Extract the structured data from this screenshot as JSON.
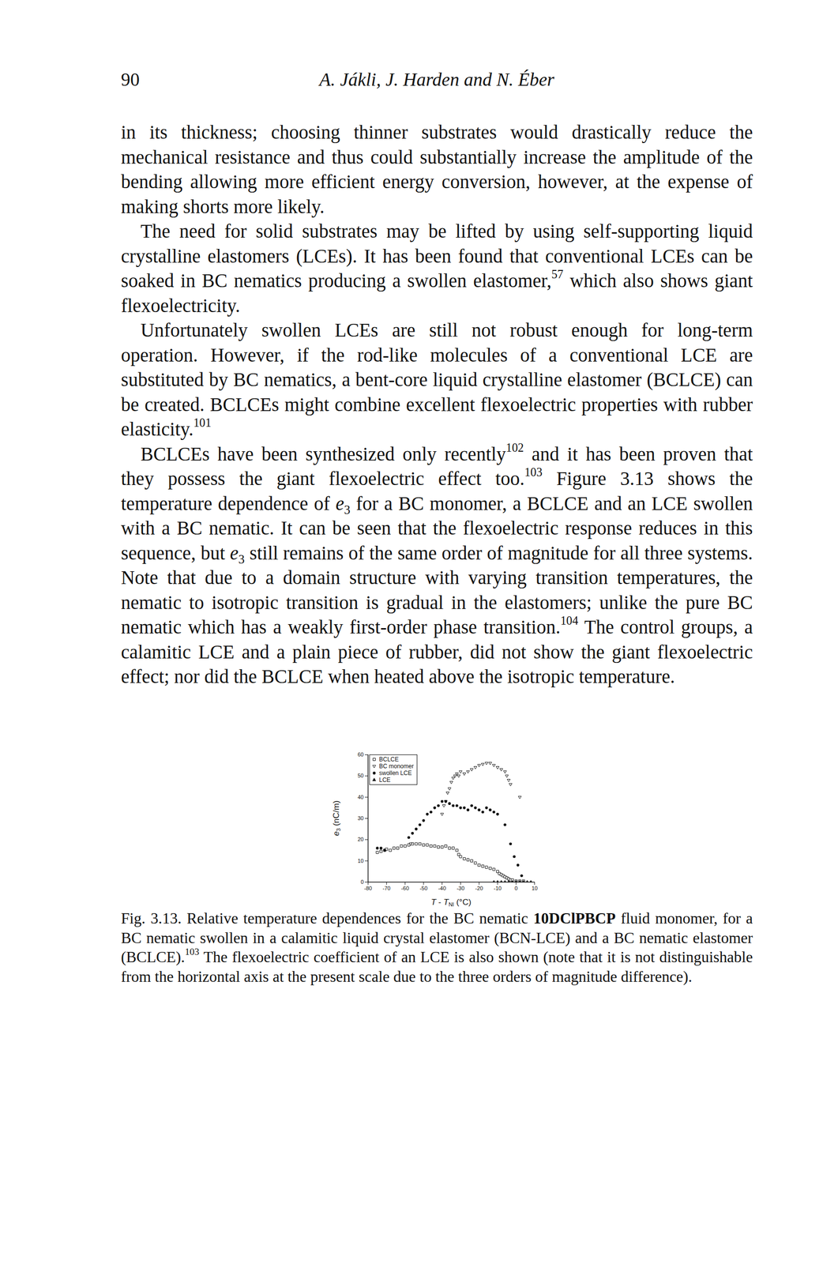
{
  "header": {
    "page_number": "90",
    "running_head": "A. Jákli, J. Harden and N. Éber"
  },
  "paragraphs": [
    [
      "in its thickness; choosing thinner substrates would drastically reduce the mechanical resistance and thus could substantially increase the amplitude of the bending allowing more efficient energy conversion, however, at the expense of making shorts more likely."
    ],
    [
      "The need for solid substrates may be lifted by using self-supporting liquid crystalline elastomers (LCEs). It has been found that conventional LCEs can be soaked in BC nematics producing a swollen elastomer,",
      {
        "sup": "57"
      },
      " which also shows giant flexoelectricity."
    ],
    [
      "Unfortunately swollen LCEs are still not robust enough for long-term operation. However, if the rod-like molecules of a conventional LCE are substituted by BC nematics, a bent-core liquid crystalline elastomer (BCLCE) can be created. BCLCEs might combine excellent flexoelectric properties with rubber elasticity.",
      {
        "sup": "101"
      }
    ],
    [
      "BCLCEs have been synthesized only recently",
      {
        "sup": "102"
      },
      " and it has been proven that they possess the giant flexoelectric effect too.",
      {
        "sup": "103"
      },
      " Figure 3.13 shows the temperature dependence of ",
      {
        "i": "e"
      },
      {
        "sub": "3"
      },
      " for a BC monomer, a BCLCE and an LCE swollen with a BC nematic. It can be seen that the flexoelectric response reduces in this sequence, but ",
      {
        "i": "e"
      },
      {
        "sub": "3"
      },
      " still remains of the same order of magnitude for all three systems. Note that due to a domain structure with varying transition temperatures, the nematic to isotropic transition is gradual in the elastomers; unlike the pure BC nematic which has a weakly first-order phase transition.",
      {
        "sup": "104"
      },
      " The control groups, a calamitic LCE and a plain piece of rubber, did not show the giant flexoelectric effect; nor did the BCLCE when heated above the isotropic temperature."
    ]
  ],
  "chart_data": {
    "type": "scatter",
    "xlabel": [
      {
        "i": "T"
      },
      " - ",
      {
        "i": "T"
      },
      {
        "sub": "NI"
      },
      " (°C)"
    ],
    "ylabel": [
      {
        "i": "e"
      },
      {
        "sub": "3"
      },
      " (nC/m)"
    ],
    "xlim": [
      -80,
      10
    ],
    "xticks": [
      -80,
      -70,
      -60,
      -50,
      -40,
      -30,
      -20,
      -10,
      0,
      10
    ],
    "ylim": [
      0,
      60
    ],
    "yticks": [
      0,
      10,
      20,
      30,
      40,
      50,
      60
    ],
    "legend": "upper left",
    "series": [
      {
        "name": "BCLCE",
        "marker": "square-open",
        "color": "#111111",
        "x": [
          -75,
          -73,
          -71,
          -70,
          -68,
          -66,
          -64,
          -62,
          -60,
          -58,
          -56,
          -54,
          -52,
          -50,
          -48,
          -46,
          -44,
          -42,
          -40,
          -38,
          -36,
          -34,
          -32,
          -31,
          -30,
          -28,
          -26,
          -24,
          -22,
          -20,
          -18,
          -16,
          -14,
          -12,
          -10,
          -9,
          -8,
          -7,
          -6,
          -5,
          -4,
          -3,
          -2,
          0,
          2,
          4
        ],
        "values": [
          14,
          14.5,
          15,
          15.5,
          15,
          16,
          16,
          17,
          17,
          17.5,
          18,
          18,
          18,
          17.5,
          17.5,
          17,
          17,
          16.5,
          16.5,
          17,
          16,
          16,
          15,
          13,
          12,
          11,
          10.5,
          10,
          9,
          8,
          7.5,
          7,
          6.5,
          6,
          5,
          4,
          3.5,
          3,
          2.5,
          2,
          1.5,
          1,
          1,
          0.5,
          0.5,
          0.5
        ]
      },
      {
        "name": "BC monomer",
        "marker": "triangle-down-open",
        "color": "#111111",
        "x": [
          -57,
          -40,
          -39,
          -38,
          -37,
          -36,
          -35,
          -34,
          -33,
          -32,
          -31,
          -30,
          -28,
          -26,
          -24,
          -22,
          -20,
          -18,
          -16,
          -14,
          -12,
          -10,
          -8,
          -6,
          -5,
          -4,
          -3,
          2
        ],
        "values": [
          18,
          32,
          36,
          38,
          42,
          44,
          47,
          49,
          50,
          51,
          50,
          52,
          51,
          52,
          53,
          54,
          55,
          55.5,
          56,
          56,
          55,
          54,
          53,
          52,
          50,
          48,
          46,
          40
        ]
      },
      {
        "name": "swollen LCE",
        "marker": "circle-filled",
        "color": "#111111",
        "x": [
          -75,
          -73,
          -71,
          -58,
          -56,
          -54,
          -52,
          -50,
          -48,
          -46,
          -44,
          -42,
          -40,
          -38,
          -36,
          -34,
          -32,
          -30,
          -28,
          -26,
          -24,
          -22,
          -20,
          -18,
          -16,
          -14,
          -12,
          -10,
          -6,
          -3,
          -1,
          1,
          3
        ],
        "values": [
          16,
          16,
          15,
          21,
          23,
          25,
          27,
          29,
          32,
          33,
          35,
          36,
          38,
          38,
          37,
          36,
          36,
          35,
          35,
          34,
          36,
          35,
          34,
          33,
          35,
          34,
          33,
          32,
          27,
          18,
          12,
          8,
          3
        ]
      },
      {
        "name": "LCE",
        "marker": "triangle-filled",
        "color": "#111111",
        "x": [
          -12,
          -10,
          -8,
          -6,
          -4,
          -2,
          0,
          2,
          4,
          6,
          8
        ],
        "values": [
          0,
          0,
          0,
          0,
          0,
          0,
          0,
          0,
          0,
          0,
          0
        ]
      }
    ]
  },
  "caption": [
    "Fig. 3.13.   Relative temperature dependences for the BC nematic ",
    {
      "b": "10DClPBCP"
    },
    " fluid monomer, for a BC nematic swollen in a calamitic liquid crystal elastomer (BCN-LCE) and a BC nematic elastomer (BCLCE).",
    {
      "sup": "103"
    },
    " The flexoelectric coefficient of an LCE is also shown (note that it is not distinguishable from the horizontal axis at the present scale due to the three orders of magnitude difference)."
  ]
}
